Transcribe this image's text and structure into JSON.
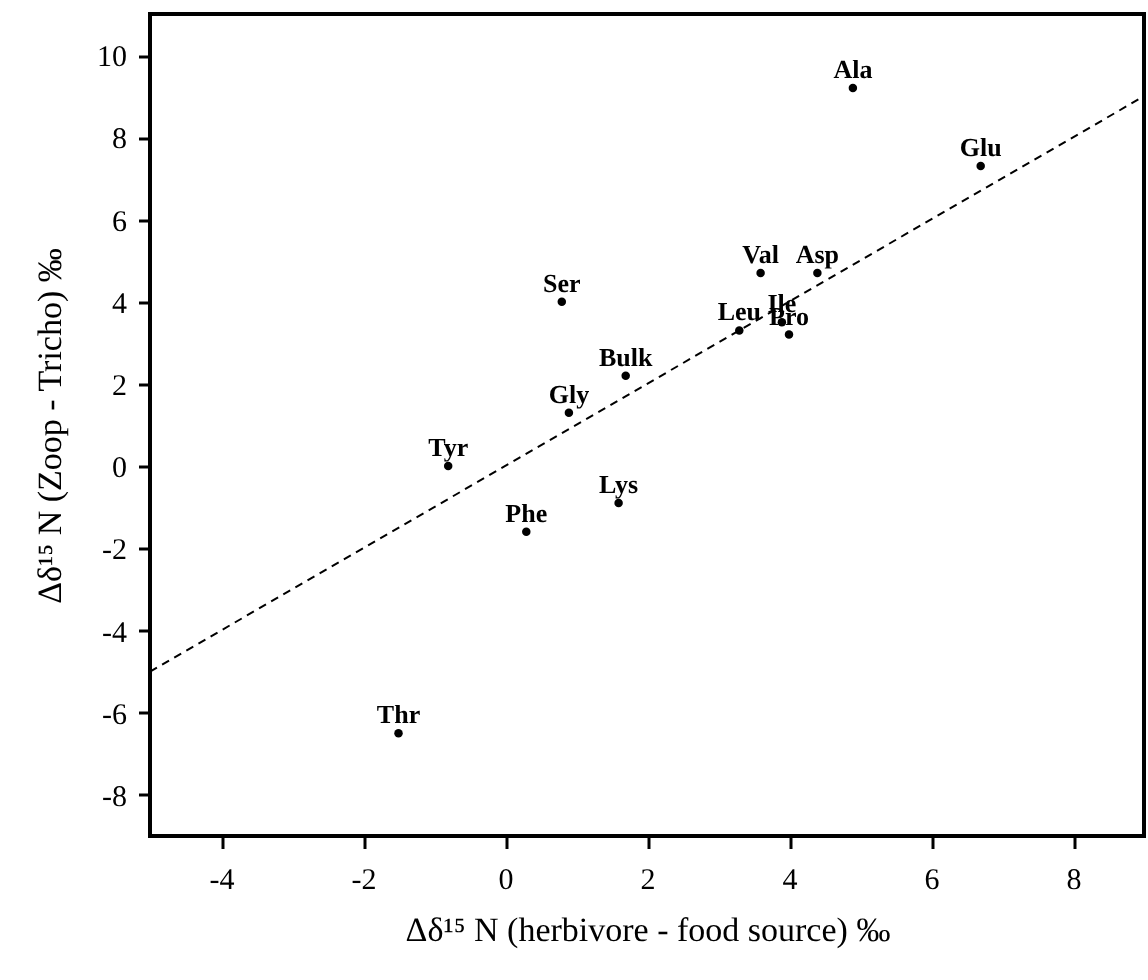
{
  "chart_data": {
    "type": "scatter",
    "xlabel": "Δδ¹⁵ N (herbivore - food source) ‰",
    "ylabel": "Δδ¹⁵ N (Zoop - Tricho) ‰",
    "xlim": [
      -5,
      9
    ],
    "ylim": [
      -9,
      11
    ],
    "xticks": [
      -4,
      -2,
      0,
      2,
      4,
      6,
      8
    ],
    "yticks": [
      -8,
      -6,
      -4,
      -2,
      0,
      2,
      4,
      6,
      8,
      10
    ],
    "grid": false,
    "series": [
      {
        "marker": "circle",
        "color": "#000000",
        "x": [
          4.9,
          6.7,
          3.6,
          4.4,
          0.8,
          3.3,
          3.9,
          4.0,
          1.7,
          0.9,
          -0.8,
          1.6,
          0.3,
          -1.5
        ],
        "values": [
          9.2,
          7.3,
          4.7,
          4.7,
          4.0,
          3.3,
          3.5,
          3.2,
          2.2,
          1.3,
          0.0,
          -0.9,
          -1.6,
          -6.5
        ],
        "value_labels": [
          "Ala",
          "Glu",
          "Val",
          "Asp",
          "Ser",
          "Leu",
          "Ile",
          "Pro",
          "Bulk",
          "Gly",
          "Tyr",
          "Lys",
          "Phe",
          "Thr"
        ]
      },
      {
        "type": "line",
        "line_style": "dashed",
        "color": "#000000",
        "x": [
          -5,
          9
        ],
        "values": [
          -5,
          9
        ]
      }
    ]
  }
}
